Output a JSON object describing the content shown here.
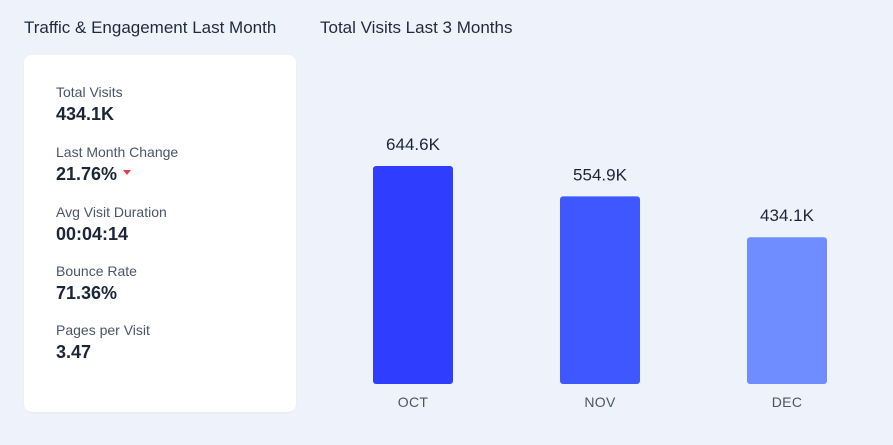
{
  "left_panel": {
    "title": "Traffic & Engagement Last Month",
    "stats": [
      {
        "label": "Total Visits",
        "value": "434.1K"
      },
      {
        "label": "Last Month Change",
        "value": "21.76%",
        "trend": "down",
        "trend_color": "#e53e3e",
        "trend_icon": "caret-down-icon"
      },
      {
        "label": "Avg Visit Duration",
        "value": "00:04:14"
      },
      {
        "label": "Bounce Rate",
        "value": "71.36%"
      },
      {
        "label": "Pages per Visit",
        "value": "3.47"
      }
    ]
  },
  "chart_data": {
    "type": "bar",
    "title": "Total Visits Last 3 Months",
    "categories": [
      "OCT",
      "NOV",
      "DEC"
    ],
    "values": [
      644600,
      554900,
      434100
    ],
    "value_labels": [
      "644.6K",
      "554.9K",
      "434.1K"
    ],
    "colors": [
      "#2f3dff",
      "#3f57ff",
      "#6f8dff"
    ],
    "grid": false,
    "legend": "none",
    "xlabel": "",
    "ylabel": ""
  }
}
